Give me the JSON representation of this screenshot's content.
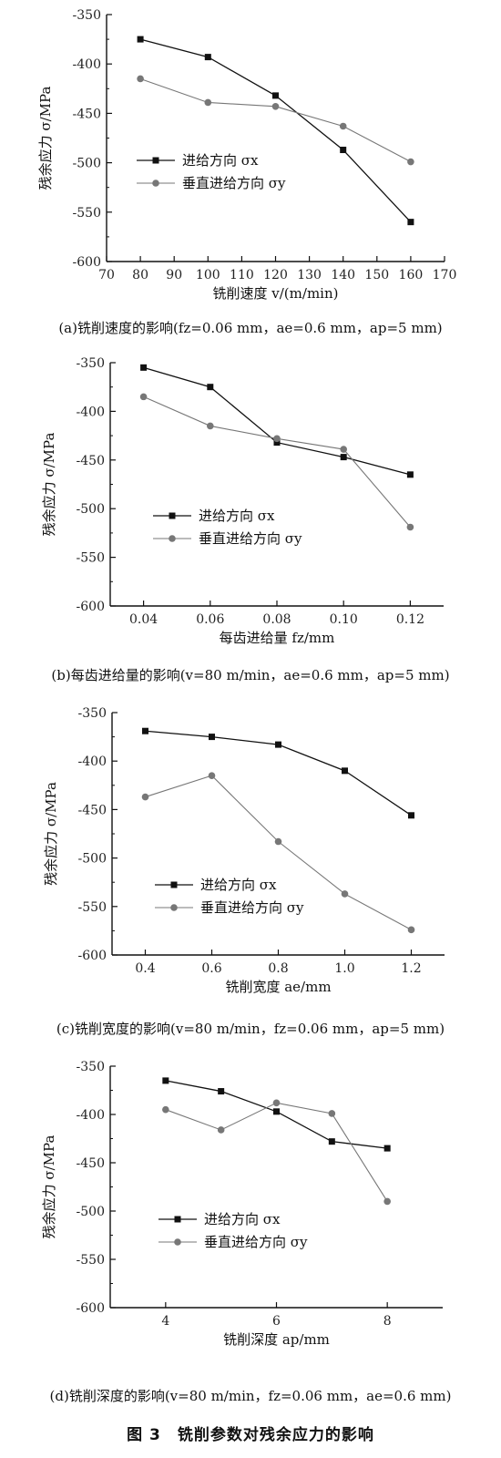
{
  "figure_title": "图 3　铣削参数对残余应力的影响",
  "series_colors": {
    "x": "#111111",
    "y": "#777777"
  },
  "chart_data": [
    {
      "type": "line",
      "caption": "(a)铣削速度的影响(fz=0.06 mm，ae=0.6 mm，ap=5 mm)",
      "xlabel": "铣削速度 v/(m/min)",
      "ylabel": "残余应力 σ/MPa",
      "xlim": [
        70,
        170
      ],
      "ylim": [
        -600,
        -350
      ],
      "xticks": [
        70,
        80,
        90,
        100,
        110,
        120,
        130,
        140,
        150,
        160,
        170
      ],
      "xtick_labels": [
        "70",
        "80",
        "90",
        "100",
        "110",
        "120",
        "130",
        "140",
        "150",
        "160",
        "170"
      ],
      "yticks": [
        -350,
        -400,
        -450,
        -500,
        -550,
        -600
      ],
      "ytick_labels": [
        "-350",
        "-400",
        "-450",
        "-500",
        "-550",
        "-600"
      ],
      "legend": "center-left",
      "series": [
        {
          "name": "进给方向 σx",
          "marker": "square",
          "x": [
            80,
            100,
            120,
            140,
            160
          ],
          "values": [
            -375,
            -393,
            -432,
            -487,
            -560
          ]
        },
        {
          "name": "垂直进给方向 σy",
          "marker": "circle",
          "x": [
            80,
            100,
            120,
            140,
            160
          ],
          "values": [
            -415,
            -439,
            -443,
            -463,
            -499
          ]
        }
      ]
    },
    {
      "type": "line",
      "caption": "(b)每齿进给量的影响(v=80 m/min，ae=0.6 mm，ap=5 mm)",
      "xlabel": "每齿进给量 fz/mm",
      "ylabel": "残余应力 σ/MPa",
      "xlim": [
        0.03,
        0.13
      ],
      "ylim": [
        -600,
        -350
      ],
      "xticks": [
        0.04,
        0.06,
        0.08,
        0.1,
        0.12
      ],
      "xtick_labels": [
        "0.04",
        "0.06",
        "0.08",
        "0.10",
        "0.12"
      ],
      "yticks": [
        -350,
        -400,
        -450,
        -500,
        -550,
        -600
      ],
      "ytick_labels": [
        "-350",
        "-400",
        "-450",
        "-500",
        "-550",
        "-600"
      ],
      "legend": "center-left",
      "series": [
        {
          "name": "进给方向 σx",
          "marker": "square",
          "x": [
            0.04,
            0.06,
            0.08,
            0.1,
            0.12
          ],
          "values": [
            -355,
            -375,
            -432,
            -447,
            -465
          ]
        },
        {
          "name": "垂直进给方向 σy",
          "marker": "circle",
          "x": [
            0.04,
            0.06,
            0.08,
            0.1,
            0.12
          ],
          "values": [
            -385,
            -415,
            -428,
            -439,
            -519
          ]
        }
      ]
    },
    {
      "type": "line",
      "caption": "(c)铣削宽度的影响(v=80 m/min，fz=0.06 mm，ap=5 mm)",
      "xlabel": "铣削宽度 ae/mm",
      "ylabel": "残余应力 σ/MPa",
      "xlim": [
        0.3,
        1.3
      ],
      "ylim": [
        -600,
        -350
      ],
      "xticks": [
        0.4,
        0.6,
        0.8,
        1.0,
        1.2
      ],
      "xtick_labels": [
        "0.4",
        "0.6",
        "0.8",
        "1.0",
        "1.2"
      ],
      "yticks": [
        -350,
        -400,
        -450,
        -500,
        -550,
        -600
      ],
      "ytick_labels": [
        "-350",
        "-400",
        "-450",
        "-500",
        "-550",
        "-600"
      ],
      "legend": "bottom-left",
      "series": [
        {
          "name": "进给方向 σx",
          "marker": "square",
          "x": [
            0.4,
            0.6,
            0.8,
            1.0,
            1.2
          ],
          "values": [
            -369,
            -375,
            -383,
            -410,
            -456
          ]
        },
        {
          "name": "垂直进给方向 σy",
          "marker": "circle",
          "x": [
            0.4,
            0.6,
            0.8,
            1.0,
            1.2
          ],
          "values": [
            -437,
            -415,
            -483,
            -537,
            -574
          ]
        }
      ]
    },
    {
      "type": "line",
      "caption": "(d)铣削深度的影响(v=80 m/min，fz=0.06 mm，ae=0.6 mm)",
      "xlabel": "铣削深度 ap/mm",
      "ylabel": "残余应力 σ/MPa",
      "xlim": [
        3,
        9
      ],
      "ylim": [
        -600,
        -350
      ],
      "xticks": [
        4,
        6,
        8
      ],
      "xtick_labels": [
        "4",
        "6",
        "8"
      ],
      "yticks": [
        -350,
        -400,
        -450,
        -500,
        -550,
        -600
      ],
      "ytick_labels": [
        "-350",
        "-400",
        "-450",
        "-500",
        "-550",
        "-600"
      ],
      "legend": "center-left",
      "series": [
        {
          "name": "进给方向 σx",
          "marker": "square",
          "x": [
            4,
            5,
            6,
            7,
            8
          ],
          "values": [
            -365,
            -376,
            -397,
            -428,
            -435
          ]
        },
        {
          "name": "垂直进给方向 σy",
          "marker": "circle",
          "x": [
            4,
            5,
            6,
            7,
            8
          ],
          "values": [
            -395,
            -416,
            -388,
            -399,
            -490
          ]
        }
      ]
    }
  ]
}
